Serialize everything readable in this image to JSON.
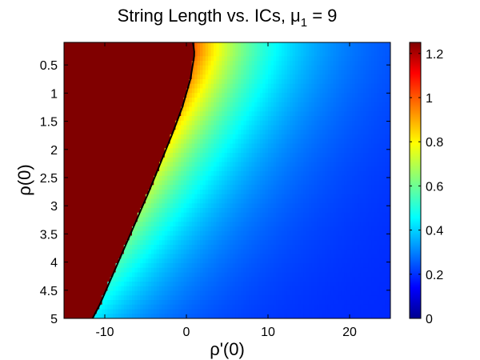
{
  "chart_data": {
    "type": "heatmap",
    "title": "String Length vs.  ICs, μ₁ = 9",
    "title_parts": {
      "text": "String Length vs.  ICs, ",
      "sym": "μ",
      "sub": "1",
      "rest": " = 9"
    },
    "xlabel": "ρ'(0)",
    "ylabel": "ρ(0)",
    "xlim": [
      -15,
      25
    ],
    "ylim": [
      0.1,
      5
    ],
    "y_reversed": true,
    "x_ticks": [
      -10,
      0,
      10,
      20
    ],
    "x_tick_labels": [
      "-10",
      "0",
      "10",
      "20"
    ],
    "y_ticks": [
      0.5,
      1,
      1.5,
      2,
      2.5,
      3,
      3.5,
      4,
      4.5,
      5
    ],
    "y_tick_labels": [
      "0.5",
      "1",
      "1.5",
      "2",
      "2.5",
      "3",
      "3.5",
      "4",
      "4.5",
      "5"
    ],
    "colorbar": {
      "range": [
        0,
        1.25
      ],
      "ticks": [
        0,
        0.2,
        0.4,
        0.6,
        0.8,
        1,
        1.2
      ],
      "tick_labels": [
        "0",
        "0.2",
        "0.4",
        "0.6",
        "0.8",
        "1",
        "1.2"
      ],
      "colormap": "jet"
    },
    "boundary_curve": {
      "color": "#000000",
      "points": [
        [
          0.8,
          0.1
        ],
        [
          1.0,
          0.3
        ],
        [
          0.5,
          0.75
        ],
        [
          -0.5,
          1.25
        ],
        [
          -1.8,
          1.75
        ],
        [
          -3.2,
          2.25
        ],
        [
          -4.6,
          2.75
        ],
        [
          -6.1,
          3.25
        ],
        [
          -7.6,
          3.75
        ],
        [
          -9.1,
          4.25
        ],
        [
          -10.6,
          4.75
        ],
        [
          -11.5,
          5.0
        ]
      ]
    },
    "saturated_value": 1.25,
    "far_value": 0.2,
    "grid": false
  }
}
